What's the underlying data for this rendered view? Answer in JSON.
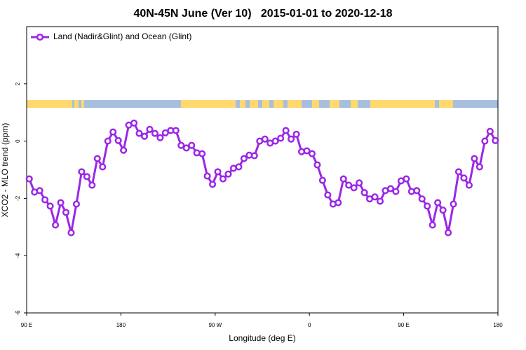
{
  "chart_data": {
    "type": "line",
    "title": "40N-45N June (Ver 10)   2015-01-01 to 2020-12-18",
    "x_label": "Longitude (deg E)",
    "y_label": "XCO2 - MLO trend (ppm)",
    "xlim": [
      90,
      540
    ],
    "xticks": [
      {
        "value": 90,
        "label": "90 E"
      },
      {
        "value": 180,
        "label": "180"
      },
      {
        "value": 270,
        "label": "90 W"
      },
      {
        "value": 360,
        "label": "0"
      },
      {
        "value": 450,
        "label": "90 E"
      },
      {
        "value": 540,
        "label": "180"
      }
    ],
    "ylim": [
      -6,
      4
    ],
    "yticks": [
      -6,
      -4,
      -2,
      0,
      2
    ],
    "legend": "top-left",
    "x": [
      92.5,
      97.5,
      102.5,
      107.5,
      112.5,
      117.5,
      122.5,
      127.5,
      132.5,
      137.5,
      142.5,
      147.5,
      152.5,
      157.5,
      162.5,
      167.5,
      172.5,
      177.5,
      182.5,
      187.5,
      192.5,
      197.5,
      202.5,
      207.5,
      212.5,
      217.5,
      222.5,
      227.5,
      232.5,
      237.5,
      242.5,
      247.5,
      252.5,
      257.5,
      262.5,
      267.5,
      272.5,
      277.5,
      282.5,
      287.5,
      292.5,
      297.5,
      302.5,
      307.5,
      312.5,
      317.5,
      322.5,
      327.5,
      332.5,
      337.5,
      342.5,
      347.5,
      352.5,
      357.5,
      362.5,
      367.5,
      372.5,
      377.5,
      382.5,
      387.5,
      392.5,
      397.5,
      402.5,
      407.5,
      412.5,
      417.5,
      422.5,
      427.5,
      432.5,
      437.5,
      442.5,
      447.5,
      452.5,
      457.5,
      462.5,
      467.5,
      472.5,
      477.5,
      482.5,
      487.5,
      492.5,
      497.5,
      502.5,
      507.5,
      512.5,
      517.5,
      522.5,
      527.5,
      532.5,
      537.5
    ],
    "series": [
      {
        "name": "Land (Nadir&Glint) and Ocean (Glint)",
        "color": "#9b27e8",
        "values": [
          -1.32,
          -1.78,
          -1.73,
          -2.05,
          -2.27,
          -2.93,
          -2.15,
          -2.49,
          -3.2,
          -2.2,
          -1.07,
          -1.24,
          -1.54,
          -0.61,
          -0.9,
          0,
          0.32,
          0.02,
          -0.32,
          0.56,
          0.63,
          0.27,
          0.17,
          0.41,
          0.27,
          0.12,
          0.29,
          0.37,
          0.37,
          -0.15,
          -0.24,
          -0.15,
          -0.41,
          -0.44,
          -1.22,
          -1.51,
          -1.07,
          -1.32,
          -1.15,
          -0.95,
          -0.9,
          -0.61,
          -0.49,
          -0.51,
          0,
          0.07,
          -0.07,
          0,
          0.1,
          0.37,
          0.07,
          0.24,
          -0.37,
          -0.34,
          -0.44,
          -0.83,
          -1.37,
          -1.88,
          -2.2,
          -2.15,
          -1.32,
          -1.54,
          -1.63,
          -1.46,
          -1.8,
          -2.02,
          -1.95,
          -2.1,
          -1.73,
          -1.66,
          -1.76,
          -1.39,
          -1.32,
          -1.76,
          -1.73,
          -2.02,
          -2.27,
          -2.93,
          -2.15,
          -2.41,
          -3.2,
          -2.2,
          -1.07,
          -1.29,
          -1.54,
          -0.61,
          -0.9,
          0,
          0.34,
          0.02
        ]
      }
    ]
  }
}
